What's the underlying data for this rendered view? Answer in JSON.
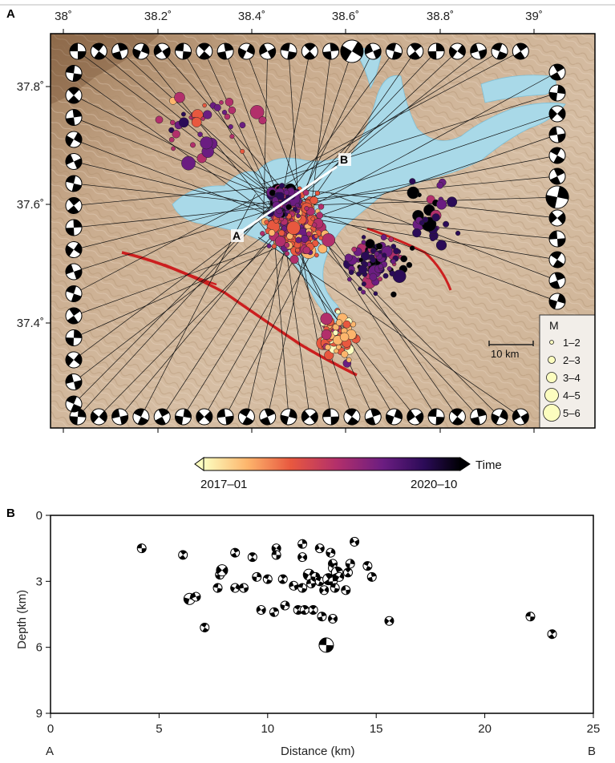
{
  "panel_a": {
    "label": "A",
    "lon_ticks": [
      "38˚",
      "38.2˚",
      "38.4˚",
      "38.6˚",
      "38.8˚",
      "39˚"
    ],
    "lat_ticks": [
      "37.8˚",
      "37.6˚",
      "37.4˚"
    ],
    "profile": {
      "start_label": "A",
      "end_label": "B"
    },
    "scalebar": "10 km",
    "legend": {
      "title": "M",
      "classes": [
        "1–2",
        "2–3",
        "3–4",
        "4–5",
        "5–6"
      ]
    },
    "colorbar": {
      "title": "Time",
      "start": "2017–01",
      "end": "2020–10",
      "colors": [
        "#fcfdbf",
        "#fdb56c",
        "#e8583f",
        "#b22f6b",
        "#6b1d81",
        "#2b0b57",
        "#000004"
      ]
    },
    "colors": {
      "lake": "#a8d8e8",
      "terrain": "#c8a88a",
      "fault": "#cc1f1f"
    }
  },
  "panel_b": {
    "label": "B",
    "xlabel": "Distance (km)",
    "ylabel": "Depth (km)",
    "x_ticks": [
      "0",
      "5",
      "10",
      "15",
      "20",
      "25"
    ],
    "y_ticks": [
      "0",
      "3",
      "6",
      "9"
    ],
    "end_labels": {
      "left": "A",
      "right": "B"
    }
  },
  "chart_data": {
    "type": "scatter",
    "title": "",
    "xlabel": "Distance (km)",
    "ylabel": "Depth (km)",
    "xlim": [
      0,
      25
    ],
    "ylim": [
      9,
      0
    ],
    "points": [
      [
        4.2,
        1.5
      ],
      [
        6.1,
        1.8
      ],
      [
        6.4,
        3.8
      ],
      [
        6.7,
        3.7
      ],
      [
        7.1,
        5.1
      ],
      [
        7.8,
        2.7
      ],
      [
        7.9,
        2.5
      ],
      [
        7.7,
        3.3
      ],
      [
        8.5,
        1.7
      ],
      [
        8.5,
        3.3
      ],
      [
        8.9,
        3.3
      ],
      [
        9.3,
        1.9
      ],
      [
        9.5,
        2.8
      ],
      [
        9.7,
        4.3
      ],
      [
        10.0,
        2.9
      ],
      [
        10.3,
        4.4
      ],
      [
        10.4,
        1.5
      ],
      [
        10.4,
        1.8
      ],
      [
        10.7,
        2.9
      ],
      [
        10.8,
        4.1
      ],
      [
        11.2,
        3.2
      ],
      [
        11.4,
        4.3
      ],
      [
        11.6,
        1.3
      ],
      [
        11.6,
        1.9
      ],
      [
        11.6,
        3.3
      ],
      [
        11.7,
        4.3
      ],
      [
        11.9,
        2.7
      ],
      [
        12.0,
        3.1
      ],
      [
        12.1,
        4.3
      ],
      [
        12.2,
        2.8
      ],
      [
        12.4,
        1.5
      ],
      [
        12.4,
        3.0
      ],
      [
        12.5,
        4.6
      ],
      [
        12.6,
        3.4
      ],
      [
        12.7,
        5.9
      ],
      [
        12.8,
        2.9
      ],
      [
        12.9,
        1.7
      ],
      [
        13.0,
        2.2
      ],
      [
        13.0,
        2.4
      ],
      [
        13.0,
        3.0
      ],
      [
        13.0,
        4.7
      ],
      [
        13.1,
        3.3
      ],
      [
        13.2,
        2.6
      ],
      [
        13.3,
        2.8
      ],
      [
        13.6,
        3.4
      ],
      [
        13.7,
        2.6
      ],
      [
        13.8,
        2.2
      ],
      [
        14.0,
        1.2
      ],
      [
        14.6,
        2.3
      ],
      [
        14.8,
        2.8
      ],
      [
        15.6,
        4.8
      ],
      [
        22.1,
        4.6
      ],
      [
        23.1,
        5.4
      ]
    ],
    "magnitudes": [
      3,
      3,
      4,
      3,
      3,
      3,
      4,
      3,
      3,
      3,
      3,
      3,
      3,
      3,
      3,
      3,
      3,
      3,
      3,
      3,
      3,
      3,
      3,
      3,
      3,
      3,
      4,
      3,
      3,
      3,
      3,
      3,
      3,
      3,
      5,
      4,
      3,
      3,
      3,
      3,
      3,
      3,
      4,
      3,
      3,
      3,
      3,
      3,
      3,
      3,
      3,
      3,
      3
    ]
  }
}
